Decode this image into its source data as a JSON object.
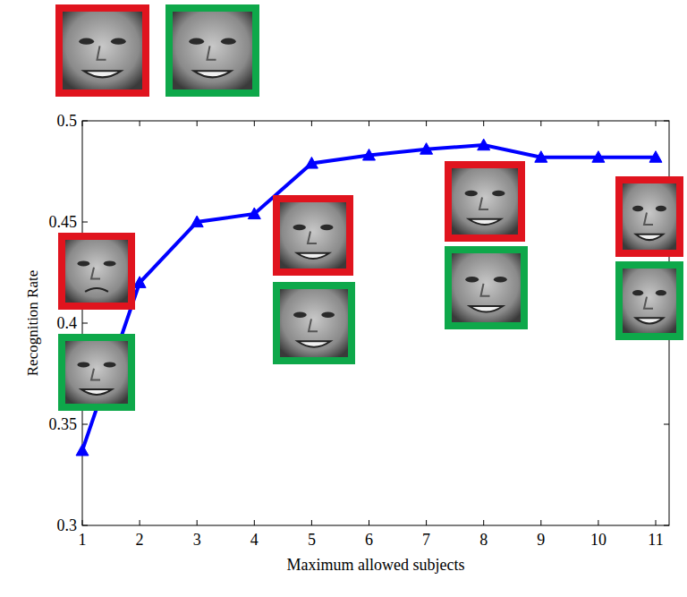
{
  "chart_data": {
    "type": "line",
    "x": [
      1,
      2,
      3,
      4,
      5,
      6,
      7,
      8,
      9,
      10,
      11
    ],
    "values": [
      0.337,
      0.42,
      0.45,
      0.454,
      0.479,
      0.483,
      0.486,
      0.488,
      0.482,
      0.482,
      0.482
    ],
    "color": "#0000ff",
    "marker": "triangle",
    "line_style": "solid",
    "x_label": "Maximum allowed subjects",
    "y_label": "Recognition Rate",
    "xlim": [
      1,
      11
    ],
    "xticks": [
      1,
      2,
      3,
      4,
      5,
      6,
      7,
      8,
      9,
      10,
      11
    ],
    "ylim": [
      0.3,
      0.5
    ],
    "yticks": [
      0.3,
      0.35,
      0.4,
      0.45,
      0.5
    ],
    "grid": false
  }
}
